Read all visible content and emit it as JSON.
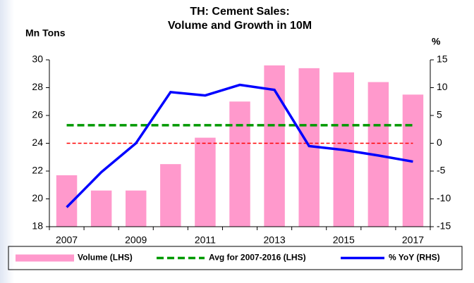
{
  "chart_data": {
    "type": "bar",
    "title": [
      "TH: Cement Sales:",
      "Volume and Growth in 10M"
    ],
    "y_label": "Mn Tons",
    "y2_label": "%",
    "categories": [
      "2007",
      null,
      "2009",
      null,
      "2011",
      null,
      "2013",
      null,
      "2015",
      null,
      "2017"
    ],
    "series": [
      {
        "name": "Volume (LHS)",
        "type": "bar",
        "color": "#ff99cc",
        "values": [
          21.7,
          20.6,
          20.6,
          22.5,
          24.4,
          27.0,
          29.6,
          29.4,
          29.1,
          28.4,
          27.5
        ]
      },
      {
        "name": "Avg for 2007-2016 (LHS)",
        "type": "line",
        "style": "dashed",
        "color": "#009900",
        "values": [
          25.3,
          25.3,
          25.3,
          25.3,
          25.3,
          25.3,
          25.3,
          25.3,
          25.3,
          25.3,
          25.3
        ]
      },
      {
        "name": "% YoY (RHS)",
        "type": "line",
        "style": "solid",
        "color": "#0000ff",
        "axis": "y2",
        "values": [
          -11.5,
          -5.2,
          0,
          9.2,
          8.6,
          10.5,
          9.6,
          -0.5,
          -1.2,
          -2.2,
          -3.3
        ]
      }
    ],
    "reference_lines": [
      {
        "axis": "y2",
        "value": 0,
        "color": "#ff0000",
        "style": "dashed"
      }
    ],
    "ylim": [
      18,
      30
    ],
    "yticks": [
      18,
      20,
      22,
      24,
      26,
      28,
      30
    ],
    "y2lim": [
      -15,
      15
    ],
    "y2ticks": [
      -15,
      -10,
      -5,
      0,
      5,
      10,
      15
    ],
    "grid": false,
    "legend": "bottom"
  }
}
